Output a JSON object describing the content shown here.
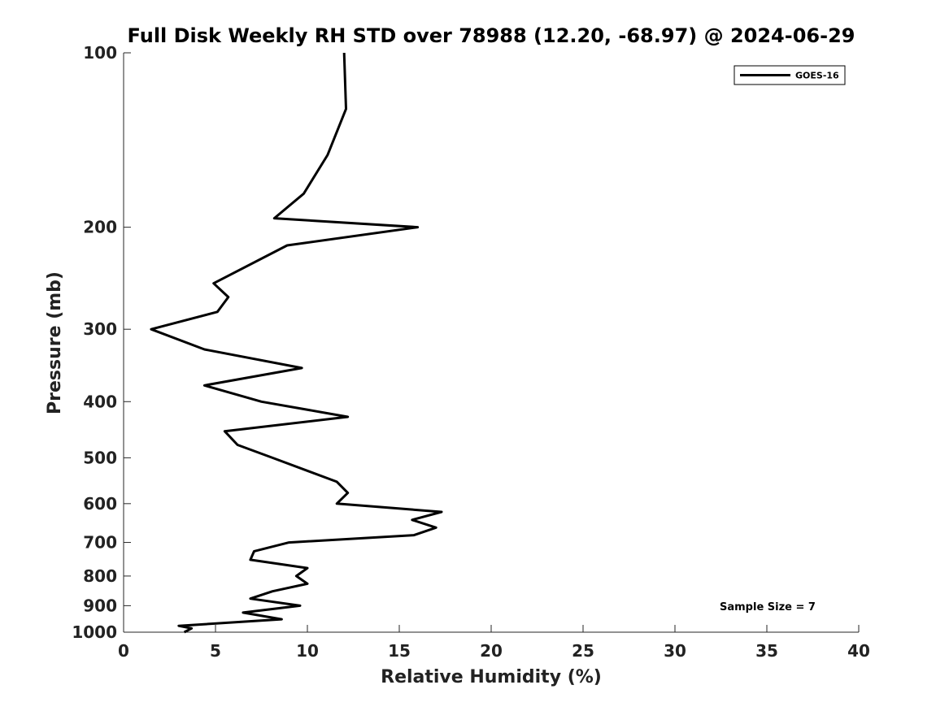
{
  "chart_data": {
    "type": "line",
    "title": "Full Disk Weekly RH STD over 78988 (12.20, -68.97) @ 2024-06-29",
    "xlabel": "Relative Humidity (%)",
    "ylabel": "Pressure (mb)",
    "xlim": [
      0,
      40
    ],
    "ylim": [
      1000,
      100
    ],
    "y_scale": "log",
    "x_ticks": [
      0,
      5,
      10,
      15,
      20,
      25,
      30,
      35,
      40
    ],
    "y_ticks": [
      100,
      200,
      300,
      400,
      500,
      600,
      700,
      800,
      900,
      1000
    ],
    "grid": false,
    "legend_position": "top-right",
    "annotation": "Sample Size = 7",
    "series": [
      {
        "name": "GOES-16",
        "color": "#000000",
        "points": [
          [
            12.0,
            100
          ],
          [
            12.1,
            125
          ],
          [
            11.1,
            150
          ],
          [
            9.8,
            175
          ],
          [
            8.2,
            193
          ],
          [
            16.0,
            200
          ],
          [
            8.9,
            215
          ],
          [
            4.9,
            250
          ],
          [
            5.7,
            264
          ],
          [
            5.1,
            280
          ],
          [
            1.5,
            300
          ],
          [
            4.4,
            325
          ],
          [
            9.7,
            350
          ],
          [
            4.4,
            375
          ],
          [
            7.5,
            400
          ],
          [
            12.2,
            425
          ],
          [
            5.5,
            450
          ],
          [
            6.2,
            475
          ],
          [
            8.1,
            500
          ],
          [
            11.6,
            550
          ],
          [
            12.2,
            575
          ],
          [
            11.6,
            600
          ],
          [
            17.3,
            620
          ],
          [
            15.7,
            640
          ],
          [
            17.0,
            660
          ],
          [
            15.8,
            680
          ],
          [
            9.0,
            700
          ],
          [
            7.1,
            725
          ],
          [
            6.9,
            750
          ],
          [
            10.0,
            775
          ],
          [
            9.4,
            800
          ],
          [
            10.0,
            825
          ],
          [
            8.1,
            850
          ],
          [
            6.9,
            875
          ],
          [
            9.6,
            900
          ],
          [
            6.5,
            925
          ],
          [
            8.6,
            950
          ],
          [
            3.0,
            975
          ],
          [
            3.7,
            985
          ],
          [
            3.3,
            1000
          ]
        ]
      }
    ]
  }
}
